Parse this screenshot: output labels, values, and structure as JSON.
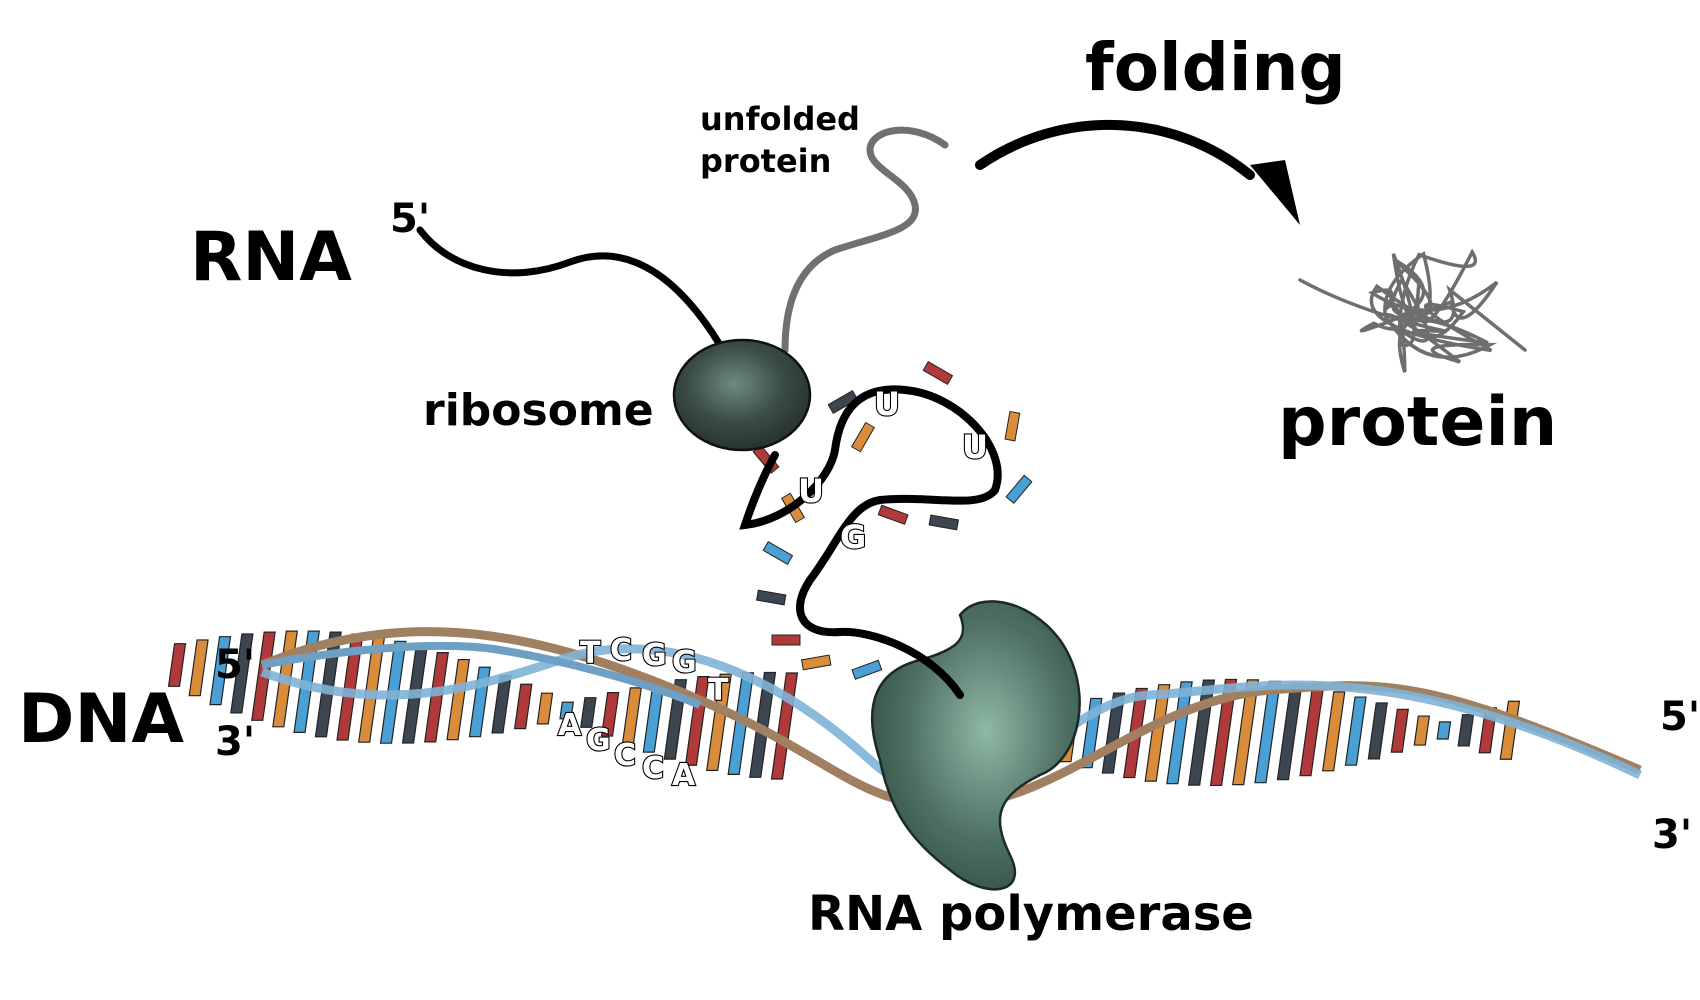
{
  "labels": {
    "rna": "RNA",
    "rna_5prime": "5'",
    "ribosome": "ribosome",
    "unfolded_protein_line1": "unfolded",
    "unfolded_protein_line2": "protein",
    "folding": "folding",
    "protein": "protein",
    "dna": "DNA",
    "dna_left_5prime": "5'",
    "dna_left_3prime": "3'",
    "dna_right_5prime": "5'",
    "dna_right_3prime": "3'",
    "rna_polymerase": "RNA polymerase"
  },
  "sequences": {
    "dna_top_strand": [
      "T",
      "C",
      "G",
      "G",
      "T"
    ],
    "dna_bottom_strand": [
      "A",
      "G",
      "C",
      "C",
      "A"
    ],
    "rna_bases": [
      "U",
      "U",
      "U",
      "G"
    ]
  },
  "colors": {
    "base_red": "#b03a3a",
    "base_orange": "#d98c3a",
    "base_blue": "#4a9fd4",
    "base_dark": "#3c4650",
    "backbone_blue": "#7fb2d6",
    "backbone_tan": "#a08060",
    "enzyme_green": "#3f5d53",
    "ribosome_dark": "#2e3b36",
    "protein_grey": "#707070"
  }
}
